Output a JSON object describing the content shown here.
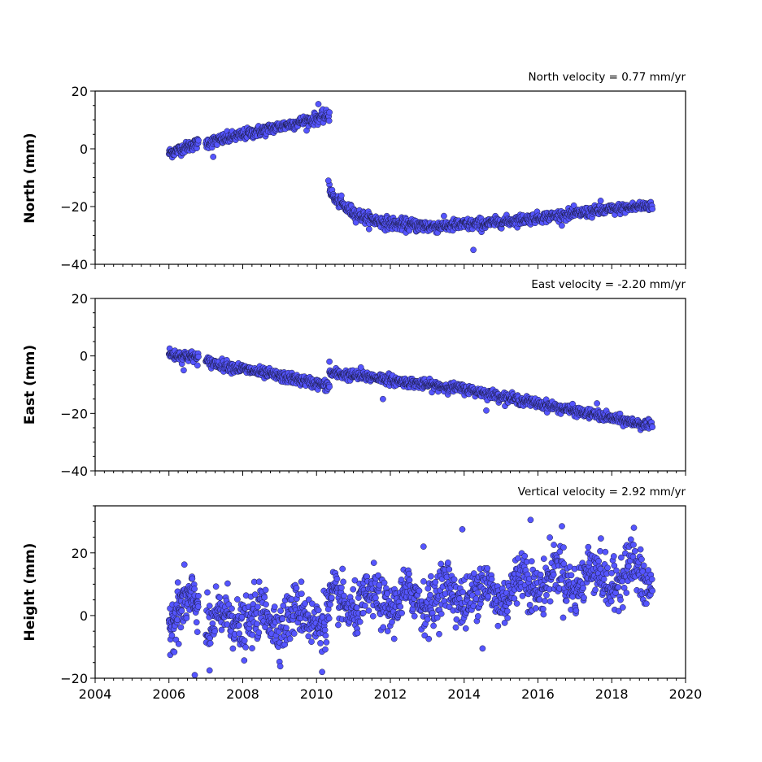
{
  "colors": {
    "marker_fill": "#5555ff",
    "marker_edge": "#1a1a40",
    "axes": "#000000",
    "background": "#ffffff"
  },
  "chart_data": [
    {
      "type": "scatter",
      "title": "North velocity = 0.77 mm/yr",
      "ylabel": "North (mm)",
      "xlim": [
        2004,
        2020
      ],
      "ylim": [
        -40,
        20
      ],
      "yticks": [
        "20",
        "0",
        "−20",
        "−40"
      ],
      "xtick_labels_shown": false,
      "series": [
        {
          "segments": [
            {
              "t0": 2006.0,
              "t1": 2006.8,
              "y0": -1.5,
              "y1": 2.0,
              "noise": 1.2,
              "n": 90
            },
            {
              "t0": 2007.0,
              "t1": 2010.35,
              "y0": 2.0,
              "y1": 11.5,
              "noise": 1.3,
              "n": 320
            },
            {
              "t0": 2010.35,
              "t1": 2010.7,
              "y0": -13.0,
              "y1": -19.0,
              "noise": 1.2,
              "n": 40,
              "curve": true
            },
            {
              "t0": 2010.7,
              "t1": 2013.0,
              "y0": -19.5,
              "y1": -27.0,
              "noise": 1.4,
              "n": 240,
              "curve": true
            },
            {
              "t0": 2013.0,
              "t1": 2014.5,
              "y0": -27.0,
              "y1": -26.0,
              "noise": 1.4,
              "n": 150
            },
            {
              "t0": 2014.5,
              "t1": 2019.1,
              "y0": -26.0,
              "y1": -19.5,
              "noise": 1.2,
              "n": 440
            }
          ],
          "outliers": [
            [
              2007.2,
              -2.8
            ],
            [
              2010.05,
              15.5
            ],
            [
              2014.25,
              -35.0
            ],
            [
              2010.32,
              -11.0
            ],
            [
              2017.7,
              -18.0
            ]
          ]
        }
      ]
    },
    {
      "type": "scatter",
      "title": "East velocity = -2.20 mm/yr",
      "ylabel": "East (mm)",
      "xlim": [
        2004,
        2020
      ],
      "ylim": [
        -40,
        20
      ],
      "yticks": [
        "20",
        "0",
        "−20",
        "−40"
      ],
      "xtick_labels_shown": false,
      "series": [
        {
          "segments": [
            {
              "t0": 2006.0,
              "t1": 2006.8,
              "y0": 0.5,
              "y1": -0.5,
              "noise": 1.3,
              "n": 90
            },
            {
              "t0": 2007.0,
              "t1": 2010.35,
              "y0": -2.0,
              "y1": -10.5,
              "noise": 1.2,
              "n": 320
            },
            {
              "t0": 2010.35,
              "t1": 2012.0,
              "y0": -6.0,
              "y1": -8.0,
              "noise": 1.2,
              "n": 160
            },
            {
              "t0": 2012.0,
              "t1": 2014.0,
              "y0": -8.5,
              "y1": -11.5,
              "noise": 1.1,
              "n": 200
            },
            {
              "t0": 2014.0,
              "t1": 2019.1,
              "y0": -11.5,
              "y1": -24.5,
              "noise": 1.1,
              "n": 480
            }
          ],
          "outliers": [
            [
              2010.35,
              -2.0
            ],
            [
              2011.2,
              -4.0
            ],
            [
              2011.8,
              -15.0
            ],
            [
              2014.6,
              -19.0
            ],
            [
              2017.6,
              -16.5
            ],
            [
              2006.4,
              -5.0
            ]
          ]
        }
      ]
    },
    {
      "type": "scatter",
      "title": "Vertical velocity = 2.92 mm/yr",
      "ylabel": "Height (mm)",
      "xlabel": "",
      "xlim": [
        2004,
        2020
      ],
      "ylim": [
        -20,
        35
      ],
      "yticks": [
        "20",
        "0",
        "−20"
      ],
      "xticks": [
        "2004",
        "2006",
        "2008",
        "2010",
        "2012",
        "2014",
        "2016",
        "2018",
        "2020"
      ],
      "series": [
        {
          "segments": [
            {
              "t0": 2006.0,
              "t1": 2006.8,
              "y0": 0.0,
              "y1": 4.0,
              "noise": 5.5,
              "n": 110,
              "seasonal": 2.5
            },
            {
              "t0": 2007.0,
              "t1": 2010.35,
              "y0": -2.0,
              "y1": 0.0,
              "noise": 5.5,
              "n": 330,
              "seasonal": 3.0
            },
            {
              "t0": 2010.35,
              "t1": 2013.0,
              "y0": 3.0,
              "y1": 5.5,
              "noise": 5.0,
              "n": 270,
              "seasonal": 3.0
            },
            {
              "t0": 2013.0,
              "t1": 2015.5,
              "y0": 6.0,
              "y1": 8.0,
              "noise": 5.5,
              "n": 250,
              "seasonal": 3.5
            },
            {
              "t0": 2015.5,
              "t1": 2019.1,
              "y0": 11.0,
              "y1": 13.0,
              "noise": 5.5,
              "n": 360,
              "seasonal": 4.0
            }
          ],
          "outliers": [
            [
              2006.7,
              -19.0
            ],
            [
              2007.1,
              -17.5
            ],
            [
              2010.15,
              -18.0
            ],
            [
              2013.95,
              27.5
            ],
            [
              2015.8,
              30.5
            ],
            [
              2016.65,
              28.5
            ],
            [
              2018.6,
              28.0
            ],
            [
              2014.5,
              -10.5
            ],
            [
              2012.9,
              22.0
            ]
          ]
        }
      ]
    }
  ]
}
